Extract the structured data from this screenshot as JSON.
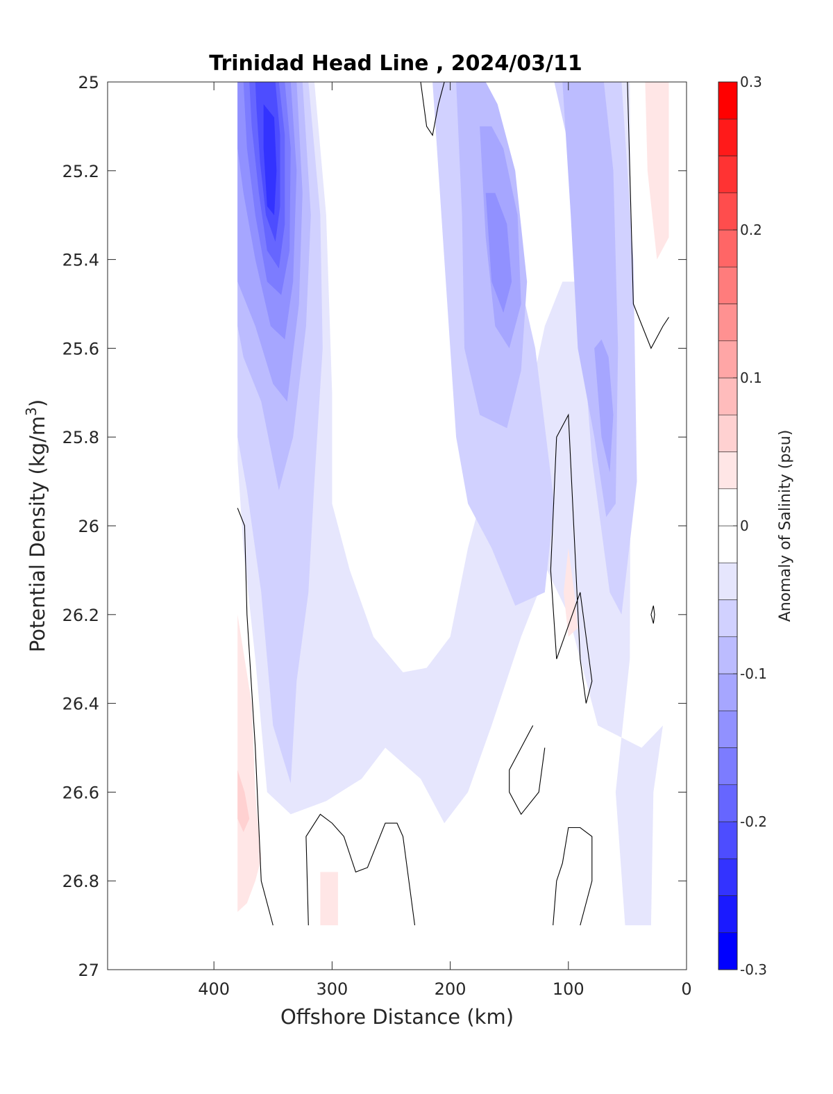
{
  "chart_data": {
    "type": "contour",
    "title": "Trinidad Head Line , 2024/03/11",
    "xlabel": "Offshore Distance (km)",
    "ylabel_main": "Potential Density (kg/m",
    "ylabel_sup": "3",
    "ylabel_close": ")",
    "xlim": [
      490,
      0
    ],
    "ylim": [
      25,
      27
    ],
    "y_reversed": true,
    "xticks": [
      400,
      300,
      200,
      100,
      0
    ],
    "xtick_labels": [
      "400",
      "300",
      "200",
      "100",
      "0"
    ],
    "yticks": [
      25,
      25.2,
      25.4,
      25.6,
      25.8,
      26,
      26.2,
      26.4,
      26.6,
      26.8,
      27
    ],
    "ytick_labels": [
      "25",
      "25.2",
      "25.4",
      "25.6",
      "25.8",
      "26",
      "26.2",
      "26.4",
      "26.6",
      "26.8",
      "27"
    ],
    "colorbar": {
      "label": "Anomaly of Salinity (psu)",
      "range": [
        -0.3,
        0.3
      ],
      "tick_values": [
        -0.3,
        -0.2,
        -0.1,
        0,
        0.1,
        0.2,
        0.3
      ],
      "tick_labels": [
        "-0.3",
        "-0.2",
        "-0.1",
        "0",
        "0.1",
        "0.2",
        "0.3"
      ],
      "levels": [
        {
          "min": -0.3,
          "max": -0.275,
          "color": "#0000ff"
        },
        {
          "min": -0.275,
          "max": -0.25,
          "color": "#1a1aff"
        },
        {
          "min": -0.25,
          "max": -0.225,
          "color": "#3333ff"
        },
        {
          "min": -0.225,
          "max": -0.2,
          "color": "#4d4dff"
        },
        {
          "min": -0.2,
          "max": -0.175,
          "color": "#6666ff"
        },
        {
          "min": -0.175,
          "max": -0.15,
          "color": "#7c7cff"
        },
        {
          "min": -0.15,
          "max": -0.125,
          "color": "#9191ff"
        },
        {
          "min": -0.125,
          "max": -0.1,
          "color": "#a6a6ff"
        },
        {
          "min": -0.1,
          "max": -0.075,
          "color": "#bcbcff"
        },
        {
          "min": -0.075,
          "max": -0.05,
          "color": "#d1d1ff"
        },
        {
          "min": -0.05,
          "max": -0.025,
          "color": "#e6e6fd"
        },
        {
          "min": -0.025,
          "max": 0,
          "color": "#ffffff"
        },
        {
          "min": 0,
          "max": 0.025,
          "color": "#ffffff"
        },
        {
          "min": 0.025,
          "max": 0.05,
          "color": "#ffe6e6"
        },
        {
          "min": 0.05,
          "max": 0.075,
          "color": "#ffd1d1"
        },
        {
          "min": 0.075,
          "max": 0.1,
          "color": "#ffbcbc"
        },
        {
          "min": 0.1,
          "max": 0.125,
          "color": "#ffa6a6"
        },
        {
          "min": 0.125,
          "max": 0.15,
          "color": "#ff9191"
        },
        {
          "min": 0.15,
          "max": 0.175,
          "color": "#ff7c7c"
        },
        {
          "min": 0.175,
          "max": 0.2,
          "color": "#ff6666"
        },
        {
          "min": 0.2,
          "max": 0.225,
          "color": "#ff4d4d"
        },
        {
          "min": 0.225,
          "max": 0.25,
          "color": "#ff3333"
        },
        {
          "min": 0.25,
          "max": 0.275,
          "color": "#ff1a1a"
        },
        {
          "min": 0.275,
          "max": 0.3,
          "color": "#ff0000"
        }
      ]
    },
    "filled_regions": [
      {
        "level": -0.025,
        "points": [
          [
            380,
            25
          ],
          [
            315,
            25
          ],
          [
            305,
            25.3
          ],
          [
            300,
            25.7
          ],
          [
            300,
            25.95
          ],
          [
            285,
            26.1
          ],
          [
            265,
            26.25
          ],
          [
            240,
            26.33
          ],
          [
            220,
            26.32
          ],
          [
            200,
            26.25
          ],
          [
            185,
            26.05
          ],
          [
            170,
            25.9
          ],
          [
            140,
            25.8
          ],
          [
            120,
            25.55
          ],
          [
            105,
            25.45
          ],
          [
            92,
            25.45
          ],
          [
            85,
            25.3
          ],
          [
            78,
            25
          ],
          [
            48,
            25
          ],
          [
            47,
            25.6
          ],
          [
            48,
            26.3
          ],
          [
            52,
            26.4
          ],
          [
            60,
            26.6
          ],
          [
            52,
            26.9
          ],
          [
            30,
            26.9
          ],
          [
            28,
            26.6
          ],
          [
            20,
            26.45
          ],
          [
            38,
            26.5
          ],
          [
            75,
            26.45
          ],
          [
            100,
            26.2
          ],
          [
            118,
            26.1
          ],
          [
            140,
            26.25
          ],
          [
            165,
            26.45
          ],
          [
            185,
            26.6
          ],
          [
            205,
            26.67
          ],
          [
            225,
            26.57
          ],
          [
            255,
            26.5
          ],
          [
            275,
            26.57
          ],
          [
            305,
            26.62
          ],
          [
            335,
            26.65
          ],
          [
            355,
            26.6
          ],
          [
            365,
            26.3
          ],
          [
            375,
            26.05
          ],
          [
            380,
            25.85
          ]
        ]
      },
      {
        "level": -0.05,
        "points": [
          [
            380,
            25
          ],
          [
            320,
            25
          ],
          [
            310,
            25.3
          ],
          [
            308,
            25.6
          ],
          [
            315,
            25.9
          ],
          [
            320,
            26.15
          ],
          [
            330,
            26.35
          ],
          [
            335,
            26.58
          ],
          [
            350,
            26.45
          ],
          [
            360,
            26.15
          ],
          [
            372,
            25.92
          ],
          [
            380,
            25.8
          ]
        ]
      },
      {
        "level": -0.05,
        "points": [
          [
            215,
            25
          ],
          [
            195,
            25.8
          ],
          [
            185,
            25.95
          ],
          [
            165,
            26.05
          ],
          [
            145,
            26.18
          ],
          [
            120,
            26.15
          ],
          [
            112,
            25.95
          ],
          [
            128,
            25.6
          ],
          [
            145,
            25.4
          ],
          [
            168,
            25.05
          ],
          [
            175,
            25
          ]
        ]
      },
      {
        "level": -0.05,
        "points": [
          [
            112,
            25
          ],
          [
            95,
            25.2
          ],
          [
            90,
            25.5
          ],
          [
            80,
            25.85
          ],
          [
            65,
            26.15
          ],
          [
            55,
            26.2
          ],
          [
            42,
            25.9
          ],
          [
            45,
            25.4
          ],
          [
            55,
            25
          ],
          [
            70,
            25
          ]
        ]
      },
      {
        "level": -0.075,
        "points": [
          [
            380,
            25
          ],
          [
            325,
            25
          ],
          [
            318,
            25.3
          ],
          [
            322,
            25.55
          ],
          [
            333,
            25.8
          ],
          [
            345,
            25.92
          ],
          [
            360,
            25.72
          ],
          [
            375,
            25.62
          ],
          [
            380,
            25.55
          ]
        ]
      },
      {
        "level": -0.075,
        "points": [
          [
            195,
            25
          ],
          [
            190,
            25.3
          ],
          [
            188,
            25.6
          ],
          [
            175,
            25.75
          ],
          [
            152,
            25.78
          ],
          [
            140,
            25.65
          ],
          [
            135,
            25.45
          ],
          [
            145,
            25.2
          ],
          [
            160,
            25.05
          ],
          [
            170,
            25
          ]
        ]
      },
      {
        "level": -0.075,
        "points": [
          [
            105,
            25
          ],
          [
            98,
            25.3
          ],
          [
            92,
            25.6
          ],
          [
            78,
            25.8
          ],
          [
            68,
            25.98
          ],
          [
            60,
            25.95
          ],
          [
            58,
            25.6
          ],
          [
            62,
            25.2
          ],
          [
            70,
            25
          ]
        ]
      },
      {
        "level": -0.1,
        "points": [
          [
            380,
            25
          ],
          [
            330,
            25
          ],
          [
            325,
            25.25
          ],
          [
            328,
            25.5
          ],
          [
            338,
            25.72
          ],
          [
            350,
            25.68
          ],
          [
            365,
            25.55
          ],
          [
            380,
            25.45
          ]
        ]
      },
      {
        "level": -0.1,
        "points": [
          [
            175,
            25.1
          ],
          [
            170,
            25.35
          ],
          [
            162,
            25.55
          ],
          [
            150,
            25.6
          ],
          [
            140,
            25.5
          ],
          [
            143,
            25.3
          ],
          [
            155,
            25.15
          ],
          [
            165,
            25.1
          ]
        ]
      },
      {
        "level": -0.1,
        "points": [
          [
            78,
            25.6
          ],
          [
            72,
            25.8
          ],
          [
            65,
            25.88
          ],
          [
            62,
            25.75
          ],
          [
            66,
            25.62
          ],
          [
            72,
            25.58
          ]
        ]
      },
      {
        "level": -0.125,
        "points": [
          [
            380,
            25
          ],
          [
            335,
            25
          ],
          [
            330,
            25.2
          ],
          [
            333,
            25.45
          ],
          [
            340,
            25.58
          ],
          [
            352,
            25.55
          ],
          [
            365,
            25.4
          ],
          [
            375,
            25.25
          ],
          [
            380,
            25.15
          ]
        ]
      },
      {
        "level": -0.125,
        "points": [
          [
            170,
            25.25
          ],
          [
            165,
            25.45
          ],
          [
            155,
            25.52
          ],
          [
            148,
            25.45
          ],
          [
            152,
            25.32
          ],
          [
            162,
            25.25
          ]
        ]
      },
      {
        "level": -0.15,
        "points": [
          [
            375,
            25
          ],
          [
            340,
            25
          ],
          [
            335,
            25.15
          ],
          [
            336,
            25.38
          ],
          [
            343,
            25.48
          ],
          [
            355,
            25.45
          ],
          [
            365,
            25.3
          ],
          [
            372,
            25.15
          ]
        ]
      },
      {
        "level": -0.175,
        "points": [
          [
            370,
            25
          ],
          [
            345,
            25
          ],
          [
            340,
            25.12
          ],
          [
            340,
            25.32
          ],
          [
            345,
            25.42
          ],
          [
            355,
            25.38
          ],
          [
            362,
            25.25
          ],
          [
            368,
            25.1
          ]
        ]
      },
      {
        "level": -0.2,
        "points": [
          [
            365,
            25
          ],
          [
            348,
            25
          ],
          [
            344,
            25.12
          ],
          [
            344,
            25.28
          ],
          [
            348,
            25.36
          ],
          [
            356,
            25.3
          ],
          [
            361,
            25.18
          ],
          [
            364,
            25.06
          ]
        ]
      },
      {
        "level": -0.225,
        "points": [
          [
            358,
            25.05
          ],
          [
            349,
            25.08
          ],
          [
            347,
            25.2
          ],
          [
            349,
            25.3
          ],
          [
            355,
            25.28
          ],
          [
            358,
            25.15
          ]
        ]
      },
      {
        "level": 0.025,
        "points": [
          [
            380,
            26.2
          ],
          [
            368,
            26.4
          ],
          [
            365,
            26.6
          ],
          [
            360,
            26.75
          ],
          [
            365,
            26.8
          ],
          [
            372,
            26.85
          ],
          [
            380,
            26.87
          ]
        ]
      },
      {
        "level": 0.025,
        "points": [
          [
            310,
            26.78
          ],
          [
            295,
            26.78
          ],
          [
            295,
            26.9
          ],
          [
            310,
            26.9
          ]
        ]
      },
      {
        "level": 0.025,
        "points": [
          [
            100,
            26.05
          ],
          [
            95,
            26.15
          ],
          [
            92,
            26.23
          ],
          [
            100,
            26.25
          ],
          [
            104,
            26.15
          ]
        ]
      },
      {
        "level": 0.025,
        "points": [
          [
            35,
            25
          ],
          [
            15,
            25
          ],
          [
            15,
            25.35
          ],
          [
            25,
            25.4
          ],
          [
            33,
            25.2
          ]
        ]
      },
      {
        "level": 0.05,
        "points": [
          [
            380,
            26.55
          ],
          [
            374,
            26.6
          ],
          [
            370,
            26.66
          ],
          [
            375,
            26.69
          ],
          [
            380,
            26.66
          ]
        ]
      }
    ],
    "zero_contours": [
      [
        [
          380,
          25.96
        ],
        [
          374,
          26
        ],
        [
          372,
          26.2
        ],
        [
          365,
          26.5
        ],
        [
          360,
          26.8
        ],
        [
          350,
          26.9
        ]
      ],
      [
        [
          320,
          26.9
        ],
        [
          322,
          26.7
        ],
        [
          310,
          26.65
        ],
        [
          300,
          26.67
        ],
        [
          290,
          26.7
        ],
        [
          280,
          26.78
        ],
        [
          270,
          26.77
        ],
        [
          255,
          26.67
        ],
        [
          245,
          26.67
        ],
        [
          240,
          26.7
        ],
        [
          235,
          26.8
        ],
        [
          230,
          26.9
        ]
      ],
      [
        [
          225,
          25
        ],
        [
          220,
          25.1
        ],
        [
          215,
          25.12
        ],
        [
          210,
          25.05
        ],
        [
          205,
          25
        ]
      ],
      [
        [
          130,
          26.45
        ],
        [
          140,
          26.5
        ],
        [
          150,
          26.55
        ],
        [
          150,
          26.6
        ],
        [
          140,
          26.65
        ],
        [
          125,
          26.6
        ],
        [
          120,
          26.5
        ]
      ],
      [
        [
          110,
          25.8
        ],
        [
          100,
          25.75
        ],
        [
          90,
          26.3
        ],
        [
          85,
          26.4
        ],
        [
          80,
          26.35
        ],
        [
          90,
          26.15
        ],
        [
          110,
          26.3
        ],
        [
          115,
          26.1
        ],
        [
          110,
          25.8
        ]
      ],
      [
        [
          113,
          26.9
        ],
        [
          110,
          26.8
        ],
        [
          105,
          26.76
        ],
        [
          100,
          26.68
        ],
        [
          90,
          26.68
        ],
        [
          80,
          26.7
        ],
        [
          80,
          26.8
        ],
        [
          90,
          26.9
        ]
      ],
      [
        [
          50,
          25
        ],
        [
          45,
          25.5
        ],
        [
          30,
          25.6
        ],
        [
          20,
          25.55
        ],
        [
          15,
          25.53
        ]
      ],
      [
        [
          30,
          26.2
        ],
        [
          28,
          26.18
        ],
        [
          27,
          26.2
        ],
        [
          28,
          26.22
        ],
        [
          30,
          26.2
        ]
      ]
    ]
  }
}
